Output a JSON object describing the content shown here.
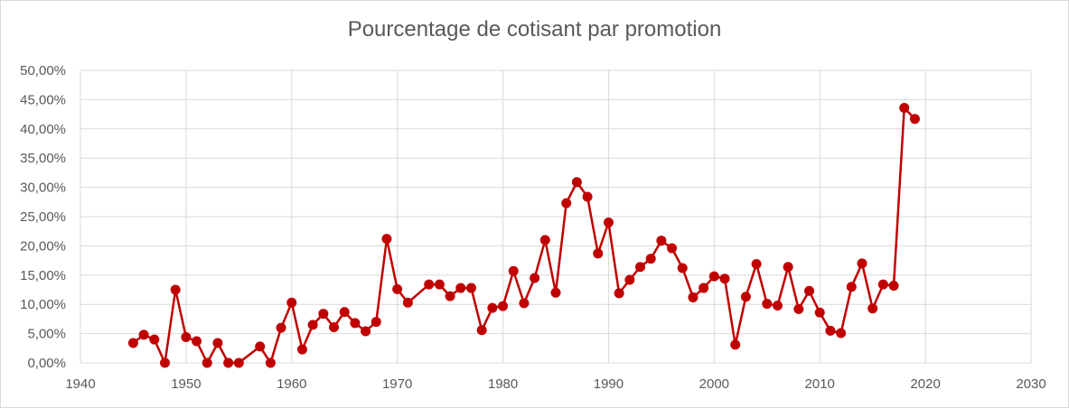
{
  "chart_data": {
    "type": "line",
    "title": "Pourcentage de cotisant par promotion",
    "xlabel": "",
    "ylabel": "",
    "xlim": [
      1940,
      2030
    ],
    "ylim": [
      0,
      50
    ],
    "x_ticks": [
      1940,
      1950,
      1960,
      1970,
      1980,
      1990,
      2000,
      2010,
      2020,
      2030
    ],
    "x_tick_labels": [
      "1940",
      "1950",
      "1960",
      "1970",
      "1980",
      "1990",
      "2000",
      "2010",
      "2020",
      "2030"
    ],
    "y_ticks": [
      0,
      5,
      10,
      15,
      20,
      25,
      30,
      35,
      40,
      45,
      50
    ],
    "y_tick_labels": [
      "0,00%",
      "5,00%",
      "10,00%",
      "15,00%",
      "20,00%",
      "25,00%",
      "30,00%",
      "35,00%",
      "40,00%",
      "45,00%",
      "50,00%"
    ],
    "grid": true,
    "legend": "none",
    "series_color": "#c00000",
    "series": [
      {
        "points": [
          [
            1945,
            3.4
          ],
          [
            1946,
            4.8
          ],
          [
            1947,
            4.0
          ],
          [
            1948,
            0.0
          ],
          [
            1949,
            12.5
          ],
          [
            1950,
            4.4
          ],
          [
            1951,
            3.7
          ],
          [
            1952,
            0.0
          ],
          [
            1953,
            3.4
          ],
          [
            1954,
            0.0
          ],
          [
            1955,
            0.0
          ],
          [
            1957,
            2.8
          ],
          [
            1958,
            0.0
          ],
          [
            1959,
            6.0
          ],
          [
            1960,
            10.3
          ],
          [
            1961,
            2.3
          ],
          [
            1962,
            6.5
          ],
          [
            1963,
            8.4
          ],
          [
            1964,
            6.1
          ],
          [
            1965,
            8.7
          ],
          [
            1966,
            6.8
          ],
          [
            1967,
            5.4
          ],
          [
            1968,
            7.0
          ],
          [
            1969,
            21.2
          ],
          [
            1970,
            12.6
          ],
          [
            1971,
            10.3
          ],
          [
            1973,
            13.4
          ],
          [
            1974,
            13.4
          ],
          [
            1975,
            11.4
          ],
          [
            1976,
            12.8
          ],
          [
            1977,
            12.8
          ],
          [
            1978,
            5.6
          ],
          [
            1979,
            9.4
          ],
          [
            1980,
            9.7
          ],
          [
            1981,
            15.7
          ],
          [
            1982,
            10.2
          ],
          [
            1983,
            14.5
          ],
          [
            1984,
            21.0
          ],
          [
            1985,
            12.0
          ],
          [
            1986,
            27.3
          ],
          [
            1987,
            30.9
          ],
          [
            1988,
            28.4
          ],
          [
            1989,
            18.7
          ],
          [
            1990,
            24.0
          ],
          [
            1991,
            11.9
          ],
          [
            1992,
            14.2
          ],
          [
            1993,
            16.4
          ],
          [
            1994,
            17.8
          ],
          [
            1995,
            20.9
          ],
          [
            1996,
            19.6
          ],
          [
            1997,
            16.2
          ],
          [
            1998,
            11.2
          ],
          [
            1999,
            12.8
          ],
          [
            2000,
            14.8
          ],
          [
            2001,
            14.4
          ],
          [
            2002,
            3.1
          ],
          [
            2003,
            11.3
          ],
          [
            2004,
            16.9
          ],
          [
            2005,
            10.1
          ],
          [
            2006,
            9.8
          ],
          [
            2007,
            16.4
          ],
          [
            2008,
            9.2
          ],
          [
            2009,
            12.3
          ],
          [
            2010,
            8.6
          ],
          [
            2011,
            5.5
          ],
          [
            2012,
            5.1
          ],
          [
            2013,
            13.0
          ],
          [
            2014,
            17.0
          ],
          [
            2015,
            9.3
          ],
          [
            2016,
            13.4
          ],
          [
            2017,
            13.2
          ],
          [
            2018,
            43.6
          ],
          [
            2019,
            41.7
          ]
        ]
      }
    ]
  }
}
